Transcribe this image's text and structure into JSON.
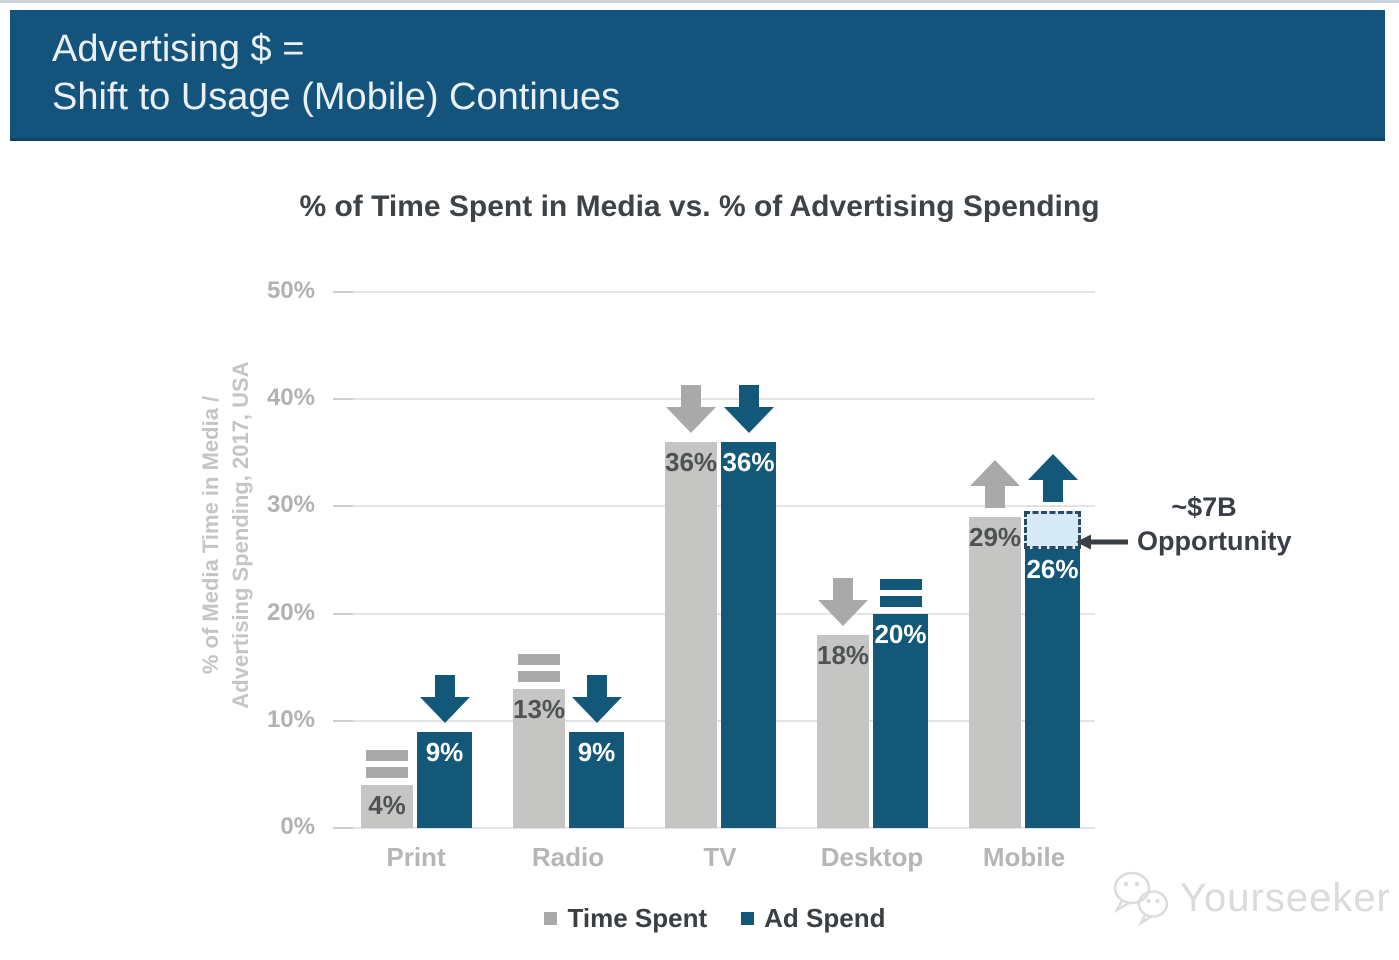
{
  "banner": {
    "line1": "Advertising $ =",
    "line2": "Shift to Usage (Mobile) Continues",
    "background": "#14537B",
    "text_color": "#E9F1F7"
  },
  "chart": {
    "title": "% of Time Spent in Media vs. % of Advertising Spending",
    "y_axis_label_line1": "% of Media Time in Media /",
    "y_axis_label_line2": "Advertising Spending, 2017, USA"
  },
  "chart_data": {
    "type": "bar",
    "title": "% of Time Spent in Media vs. % of Advertising Spending",
    "ylabel": "% of Media Time in Media / Advertising Spending, 2017, USA",
    "categories": [
      "Print",
      "Radio",
      "TV",
      "Desktop",
      "Mobile"
    ],
    "series": [
      {
        "name": "Time Spent",
        "color": "#C5C5C4",
        "label_color": "#4F5255",
        "values": [
          4,
          13,
          36,
          18,
          29
        ],
        "trend_icons": [
          "flat",
          "flat",
          "down",
          "down",
          "up"
        ],
        "icon_color": "#A9A9A9"
      },
      {
        "name": "Ad Spend",
        "color": "#135779",
        "label_color": "#FFFFFF",
        "values": [
          9,
          9,
          36,
          20,
          26
        ],
        "trend_icons": [
          "down",
          "down",
          "down",
          "flat",
          "up"
        ],
        "icon_color": "#135779"
      }
    ],
    "value_label_format": "{v}%",
    "ylim": [
      0,
      50
    ],
    "yticks": [
      0,
      10,
      20,
      30,
      40,
      50
    ],
    "ytick_labels": [
      "0%",
      "10%",
      "20%",
      "30%",
      "40%",
      "50%"
    ],
    "grid": "horizontal",
    "legend_position": "bottom",
    "annotation": {
      "line1": "~$7B",
      "line2": "Opportunity",
      "attached_to": "Mobile Ad Spend bar",
      "category_index": 4,
      "series_index": 1,
      "box_from_pct": 26,
      "box_to_pct": 29.6,
      "box_fill": "#D7EAF7",
      "box_border": "#2C4B61",
      "arrow_color": "#3A3F45"
    }
  },
  "watermark": {
    "text": "Yourseeker"
  }
}
